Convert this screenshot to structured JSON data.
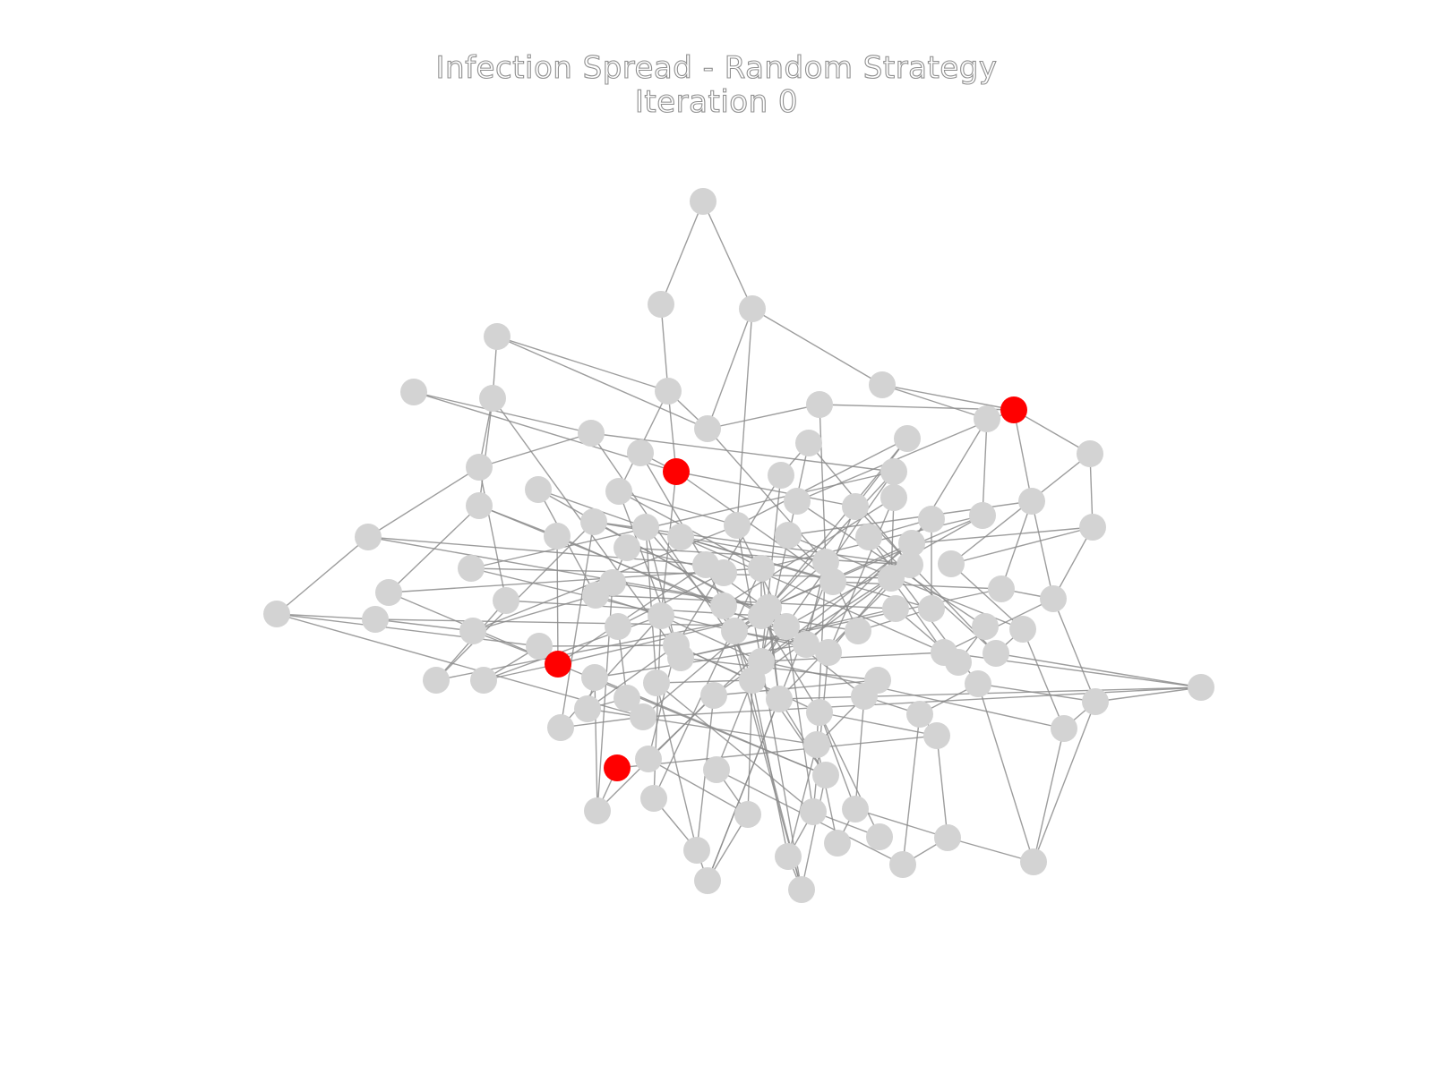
{
  "figure": {
    "title": "Infection Spread - Random Strategy",
    "subtitle": "Iteration 0"
  },
  "colors": {
    "infected": "#ff0000",
    "susceptible": "#d3d3d3",
    "edge": "#8c8c8c",
    "title_text_outline": "#8f8f8f"
  },
  "graph": {
    "node_count": 120,
    "infected_count": 4,
    "state_names": [
      "susceptible",
      "infected"
    ]
  }
}
